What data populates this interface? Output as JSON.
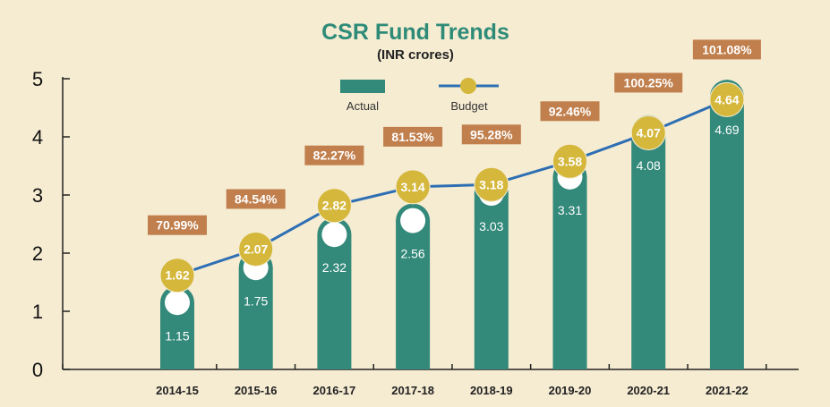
{
  "chart_data": {
    "type": "bar",
    "title": "CSR Fund Trends",
    "subtitle": "(INR crores)",
    "categories": [
      "2014-15",
      "2015-16",
      "2016-17",
      "2017-18",
      "2018-19",
      "2019-20",
      "2020-21",
      "2021-22"
    ],
    "series": [
      {
        "name": "Actual",
        "type": "bar",
        "values": [
          1.15,
          1.75,
          2.32,
          2.56,
          3.03,
          3.31,
          4.08,
          4.69
        ]
      },
      {
        "name": "Budget",
        "type": "line",
        "values": [
          1.62,
          2.07,
          2.82,
          3.14,
          3.18,
          3.58,
          4.07,
          4.64
        ]
      }
    ],
    "percentages": [
      "70.99%",
      "84.54%",
      "82.27%",
      "81.53%",
      "95.28%",
      "92.46%",
      "100.25%",
      "101.08%"
    ],
    "ylim": [
      0,
      5
    ],
    "yticks": [
      0,
      1,
      2,
      3,
      4,
      5
    ],
    "grid": false,
    "legend_position": "top-center",
    "colors": {
      "actual": "#33897a",
      "budget_marker": "#d4b73b",
      "budget_line": "#2e6fb3",
      "percentage_box": "#c07f4c",
      "background": "#f6ecd2"
    }
  }
}
